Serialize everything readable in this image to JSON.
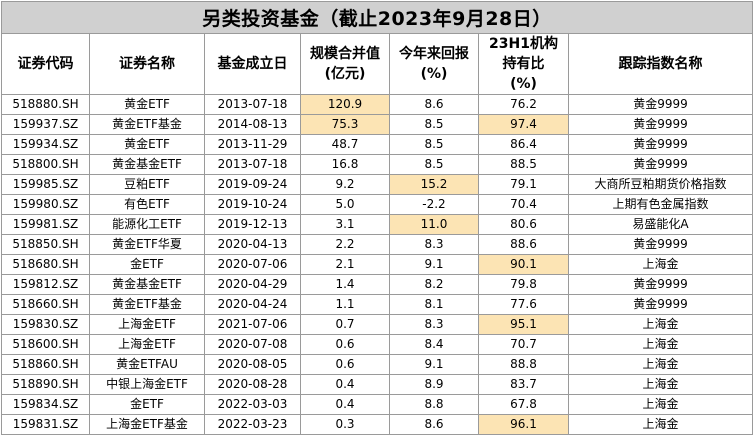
{
  "title": "另类投资基金（截止2023年9月28日）",
  "colors": {
    "title_bg": "#d0d0d0",
    "highlight": "#fce4b4",
    "border": "#9a9a9a"
  },
  "columns": [
    [
      "证券代码"
    ],
    [
      "证券名称"
    ],
    [
      "基金成立日"
    ],
    [
      "规模合并值",
      "(亿元)"
    ],
    [
      "今年来回报",
      "(%)"
    ],
    [
      "23H1机构",
      "持有比",
      "(%)"
    ],
    [
      "跟踪指数名称"
    ]
  ],
  "rows": [
    {
      "code": "518880.SH",
      "name": "黄金ETF",
      "date": "2013-07-18",
      "scale": "120.9",
      "ret": "8.6",
      "inst": "76.2",
      "index": "黄金9999",
      "hl": [
        "scale"
      ]
    },
    {
      "code": "159937.SZ",
      "name": "黄金ETF基金",
      "date": "2014-08-13",
      "scale": "75.3",
      "ret": "8.5",
      "inst": "97.4",
      "index": "黄金9999",
      "hl": [
        "scale",
        "inst"
      ]
    },
    {
      "code": "159934.SZ",
      "name": "黄金ETF",
      "date": "2013-11-29",
      "scale": "48.7",
      "ret": "8.5",
      "inst": "86.4",
      "index": "黄金9999",
      "hl": []
    },
    {
      "code": "518800.SH",
      "name": "黄金基金ETF",
      "date": "2013-07-18",
      "scale": "16.8",
      "ret": "8.5",
      "inst": "88.5",
      "index": "黄金9999",
      "hl": []
    },
    {
      "code": "159985.SZ",
      "name": "豆粕ETF",
      "date": "2019-09-24",
      "scale": "9.2",
      "ret": "15.2",
      "inst": "79.1",
      "index": "大商所豆粕期货价格指数",
      "hl": [
        "ret"
      ]
    },
    {
      "code": "159980.SZ",
      "name": "有色ETF",
      "date": "2019-10-24",
      "scale": "5.0",
      "ret": "-2.2",
      "inst": "70.4",
      "index": "上期有色金属指数",
      "hl": []
    },
    {
      "code": "159981.SZ",
      "name": "能源化工ETF",
      "date": "2019-12-13",
      "scale": "3.1",
      "ret": "11.0",
      "inst": "80.6",
      "index": "易盛能化A",
      "hl": [
        "ret"
      ]
    },
    {
      "code": "518850.SH",
      "name": "黄金ETF华夏",
      "date": "2020-04-13",
      "scale": "2.2",
      "ret": "8.3",
      "inst": "88.6",
      "index": "黄金9999",
      "hl": []
    },
    {
      "code": "518680.SH",
      "name": "金ETF",
      "date": "2020-07-06",
      "scale": "2.1",
      "ret": "9.1",
      "inst": "90.1",
      "index": "上海金",
      "hl": [
        "inst"
      ]
    },
    {
      "code": "159812.SZ",
      "name": "黄金基金ETF",
      "date": "2020-04-29",
      "scale": "1.4",
      "ret": "8.2",
      "inst": "79.8",
      "index": "黄金9999",
      "hl": []
    },
    {
      "code": "518660.SH",
      "name": "黄金ETF基金",
      "date": "2020-04-24",
      "scale": "1.1",
      "ret": "8.1",
      "inst": "77.6",
      "index": "黄金9999",
      "hl": []
    },
    {
      "code": "159830.SZ",
      "name": "上海金ETF",
      "date": "2021-07-06",
      "scale": "0.7",
      "ret": "8.3",
      "inst": "95.1",
      "index": "上海金",
      "hl": [
        "inst"
      ]
    },
    {
      "code": "518600.SH",
      "name": "上海金ETF",
      "date": "2020-07-08",
      "scale": "0.6",
      "ret": "8.4",
      "inst": "70.7",
      "index": "上海金",
      "hl": []
    },
    {
      "code": "518860.SH",
      "name": "黄金ETFAU",
      "date": "2020-08-05",
      "scale": "0.6",
      "ret": "9.1",
      "inst": "88.8",
      "index": "上海金",
      "hl": []
    },
    {
      "code": "518890.SH",
      "name": "中银上海金ETF",
      "date": "2020-08-28",
      "scale": "0.4",
      "ret": "8.9",
      "inst": "83.7",
      "index": "上海金",
      "hl": []
    },
    {
      "code": "159834.SZ",
      "name": "金ETF",
      "date": "2022-03-03",
      "scale": "0.4",
      "ret": "8.8",
      "inst": "67.8",
      "index": "上海金",
      "hl": []
    },
    {
      "code": "159831.SZ",
      "name": "上海金ETF基金",
      "date": "2022-03-23",
      "scale": "0.3",
      "ret": "8.6",
      "inst": "96.1",
      "index": "上海金",
      "hl": [
        "inst"
      ]
    }
  ]
}
